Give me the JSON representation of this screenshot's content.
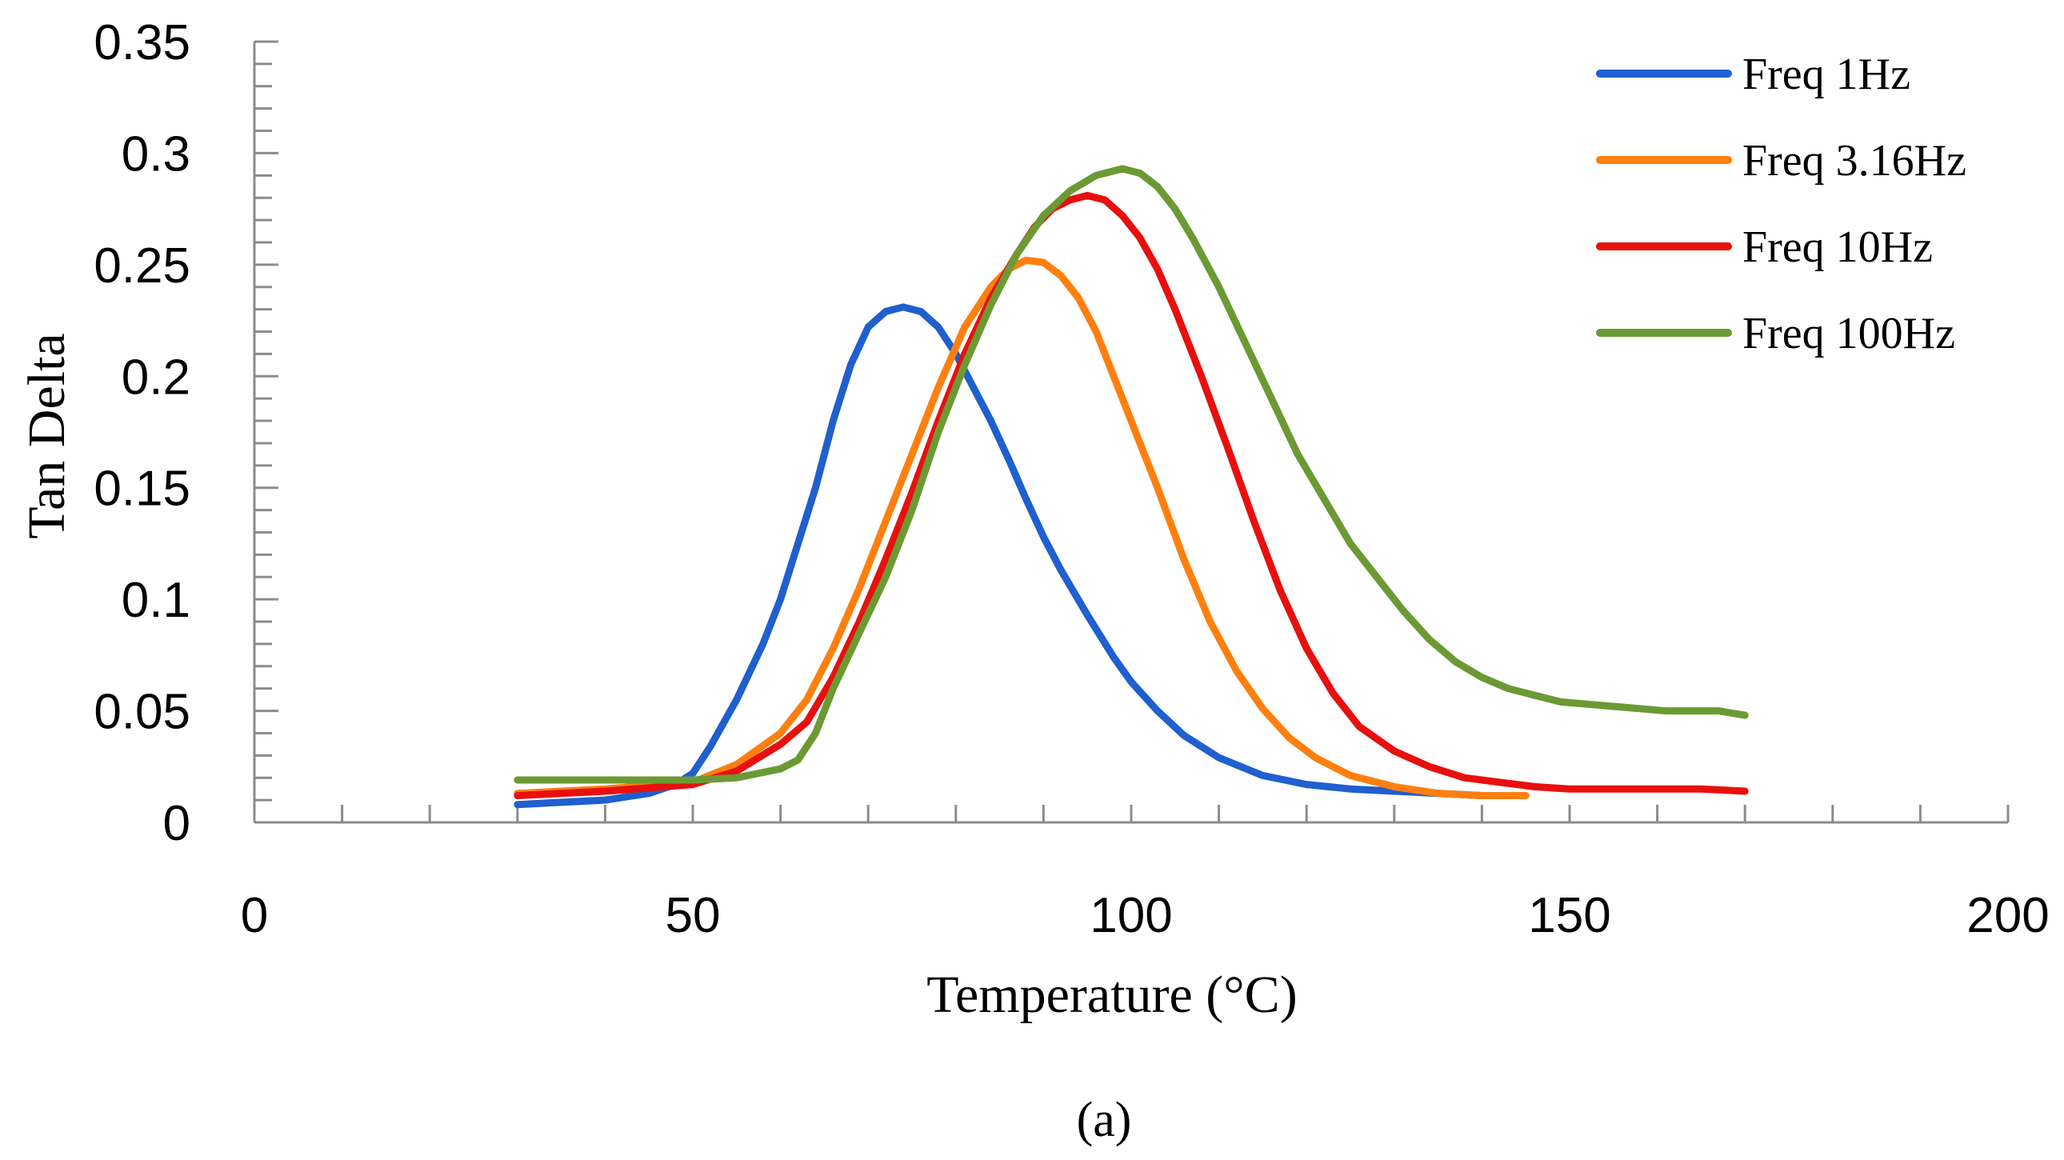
{
  "chart_data": {
    "type": "line",
    "caption": "(a)",
    "xlabel": "Temperature (°C)",
    "ylabel": "Tan Delta",
    "xlim": [
      0,
      200
    ],
    "ylim": [
      0,
      0.35
    ],
    "x_ticks": [
      0,
      50,
      100,
      150,
      200
    ],
    "y_ticks": [
      0,
      0.05,
      0.1,
      0.15,
      0.2,
      0.25,
      0.3,
      0.35
    ],
    "grid": false,
    "legend_position": "top-right",
    "series": [
      {
        "name": "Freq 1Hz",
        "color": "#1f5fcf",
        "x": [
          30,
          35,
          40,
          45,
          48,
          50,
          52,
          55,
          58,
          60,
          62,
          64,
          66,
          68,
          70,
          72,
          74,
          76,
          78,
          80,
          82,
          84,
          86,
          88,
          90,
          92,
          95,
          98,
          100,
          103,
          106,
          110,
          115,
          120,
          125,
          130,
          135,
          140,
          145
        ],
        "y": [
          0.008,
          0.009,
          0.01,
          0.013,
          0.017,
          0.022,
          0.034,
          0.055,
          0.08,
          0.1,
          0.125,
          0.15,
          0.18,
          0.205,
          0.222,
          0.229,
          0.231,
          0.229,
          0.222,
          0.21,
          0.195,
          0.18,
          0.163,
          0.145,
          0.128,
          0.113,
          0.093,
          0.074,
          0.063,
          0.05,
          0.039,
          0.029,
          0.021,
          0.017,
          0.015,
          0.014,
          0.013,
          0.012,
          0.012
        ]
      },
      {
        "name": "Freq 3.16Hz",
        "color": "#ff7f0e",
        "x": [
          30,
          40,
          50,
          55,
          60,
          63,
          66,
          69,
          72,
          75,
          78,
          81,
          84,
          86,
          88,
          90,
          92,
          94,
          96,
          98,
          100,
          103,
          106,
          109,
          112,
          115,
          118,
          121,
          125,
          130,
          135,
          140,
          145
        ],
        "y": [
          0.013,
          0.015,
          0.018,
          0.026,
          0.04,
          0.055,
          0.078,
          0.105,
          0.135,
          0.165,
          0.195,
          0.222,
          0.24,
          0.248,
          0.252,
          0.251,
          0.245,
          0.235,
          0.22,
          0.2,
          0.18,
          0.15,
          0.118,
          0.09,
          0.068,
          0.051,
          0.038,
          0.029,
          0.021,
          0.016,
          0.013,
          0.012,
          0.012
        ]
      },
      {
        "name": "Freq 10Hz",
        "color": "#e8100e",
        "x": [
          30,
          40,
          50,
          55,
          60,
          63,
          66,
          69,
          72,
          75,
          78,
          81,
          84,
          87,
          89,
          91,
          93,
          95,
          97,
          99,
          101,
          103,
          105,
          108,
          111,
          114,
          117,
          120,
          123,
          126,
          130,
          134,
          138,
          142,
          146,
          150,
          155,
          160,
          165,
          170
        ],
        "y": [
          0.012,
          0.014,
          0.017,
          0.023,
          0.035,
          0.045,
          0.065,
          0.09,
          0.118,
          0.148,
          0.18,
          0.21,
          0.235,
          0.255,
          0.267,
          0.275,
          0.279,
          0.281,
          0.279,
          0.272,
          0.262,
          0.248,
          0.23,
          0.2,
          0.168,
          0.135,
          0.104,
          0.078,
          0.058,
          0.043,
          0.032,
          0.025,
          0.02,
          0.018,
          0.016,
          0.015,
          0.015,
          0.015,
          0.015,
          0.014
        ]
      },
      {
        "name": "Freq 100Hz",
        "color": "#6b9a34",
        "x": [
          30,
          40,
          50,
          55,
          60,
          62,
          64,
          66,
          69,
          72,
          75,
          78,
          81,
          84,
          87,
          90,
          93,
          96,
          99,
          101,
          103,
          105,
          107,
          110,
          113,
          116,
          119,
          122,
          125,
          128,
          131,
          134,
          137,
          140,
          143,
          146,
          149,
          152,
          155,
          158,
          161,
          164,
          167,
          170
        ],
        "y": [
          0.019,
          0.019,
          0.019,
          0.02,
          0.024,
          0.028,
          0.04,
          0.06,
          0.085,
          0.11,
          0.14,
          0.175,
          0.205,
          0.232,
          0.255,
          0.272,
          0.283,
          0.29,
          0.293,
          0.291,
          0.285,
          0.275,
          0.262,
          0.24,
          0.215,
          0.19,
          0.165,
          0.145,
          0.125,
          0.11,
          0.095,
          0.082,
          0.072,
          0.065,
          0.06,
          0.057,
          0.054,
          0.053,
          0.052,
          0.051,
          0.05,
          0.05,
          0.05,
          0.048
        ]
      }
    ]
  }
}
